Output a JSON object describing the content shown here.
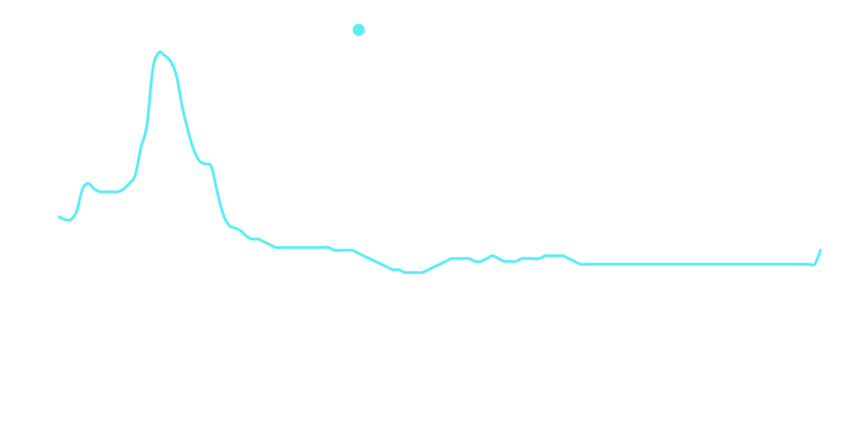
{
  "chart_data": {
    "type": "line",
    "title": "",
    "xlabel": "",
    "ylabel": "",
    "grid": false,
    "legend": "top-center",
    "color": "#5CEEF6",
    "x": [
      0,
      1,
      2,
      3,
      4,
      5,
      6,
      7,
      8,
      9,
      10,
      11,
      12,
      13,
      14,
      15,
      16,
      17,
      18,
      19,
      20,
      21,
      22,
      23,
      24,
      25,
      26,
      27,
      28,
      29,
      30,
      31,
      32,
      33,
      34,
      35,
      36,
      37,
      38,
      39,
      40,
      41,
      42,
      43,
      44,
      45,
      46,
      47,
      48,
      49,
      50,
      51,
      52,
      53,
      54,
      55,
      56,
      57,
      58,
      59,
      60,
      61,
      62,
      63,
      64,
      65,
      66,
      67,
      68,
      69,
      70,
      71,
      72,
      73,
      74,
      75,
      76,
      77,
      78,
      79,
      80,
      81,
      82,
      83,
      84,
      85,
      86,
      87,
      88,
      89,
      90,
      91,
      92,
      93,
      94,
      95,
      96,
      97,
      98,
      99,
      100,
      101,
      102,
      103,
      104,
      105,
      106,
      107,
      108,
      109,
      110,
      111,
      112,
      113,
      114,
      115,
      116,
      117,
      118,
      119,
      120,
      121,
      122,
      123,
      124,
      125,
      126,
      127,
      128,
      129,
      130
    ],
    "xlim": [
      0,
      130
    ],
    "ylim": [
      0,
      100
    ],
    "series": [
      {
        "name": "",
        "values": [
          41,
          40,
          40,
          43,
          51,
          53,
          51,
          50,
          50,
          50,
          50,
          51,
          53,
          56,
          66,
          74,
          94,
          100,
          99,
          97,
          92,
          81,
          72,
          65,
          61,
          60,
          59,
          50,
          42,
          38,
          37,
          36,
          34,
          33,
          33,
          32,
          31,
          30,
          30,
          30,
          30,
          30,
          30,
          30,
          30,
          30,
          30,
          29,
          29,
          29,
          29,
          28,
          27,
          26,
          25,
          24,
          23,
          22,
          22,
          21,
          21,
          21,
          21,
          22,
          23,
          24,
          25,
          26,
          26,
          26,
          26,
          25,
          25,
          26,
          27,
          26,
          25,
          25,
          25,
          26,
          26,
          26,
          26,
          27,
          27,
          27,
          27,
          26,
          25,
          24,
          24,
          24,
          24,
          24,
          24,
          24,
          24,
          24,
          24,
          24,
          24,
          24,
          24,
          24,
          24,
          24,
          24,
          24,
          24,
          24,
          24,
          24,
          24,
          24,
          24,
          24,
          24,
          24,
          24,
          24,
          24,
          24,
          24,
          24,
          24,
          24,
          24,
          24,
          24,
          24,
          29
        ]
      }
    ]
  }
}
